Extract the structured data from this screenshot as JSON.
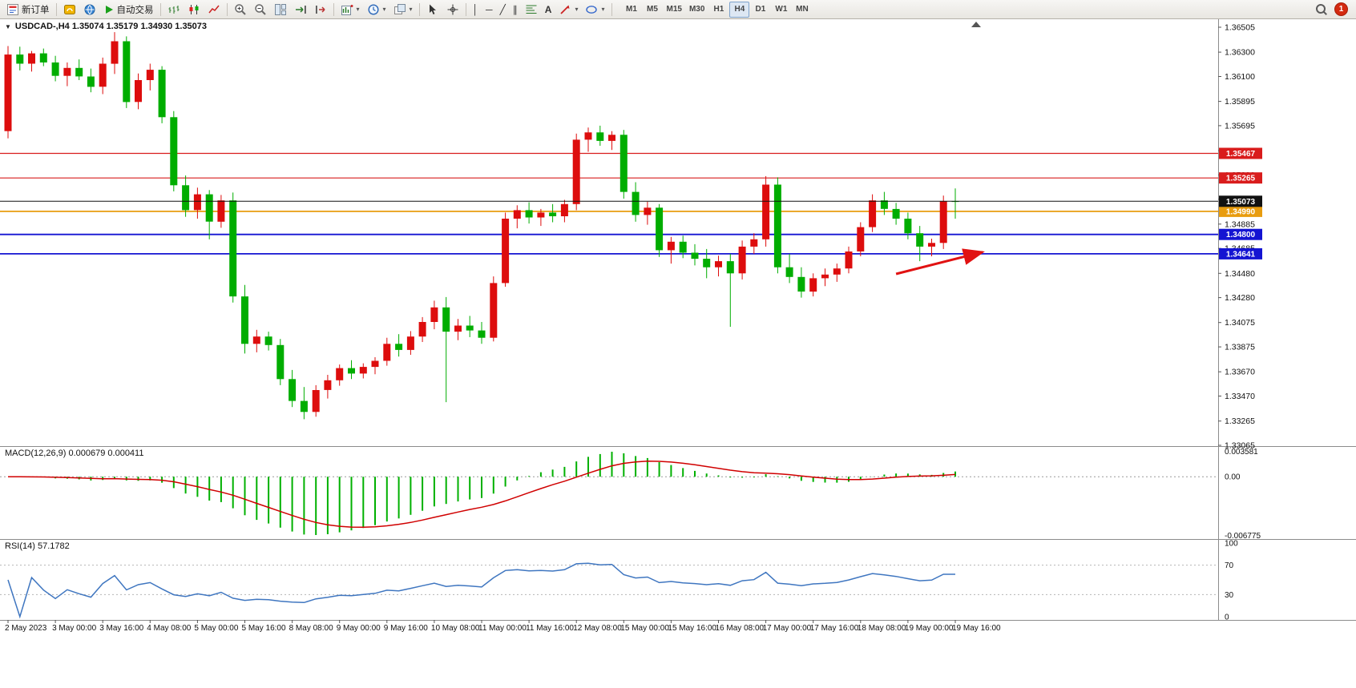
{
  "toolbar": {
    "new_order": "新订单",
    "auto_trading": "自动交易",
    "text_tool": "A",
    "timeframes": [
      "M1",
      "M5",
      "M15",
      "M30",
      "H1",
      "H4",
      "D1",
      "W1",
      "MN"
    ],
    "active_timeframe": "H4",
    "notification_count": "1"
  },
  "icons": {
    "collapse": "▼",
    "dropdown": "▾",
    "vertical_line": "│",
    "horizontal_line": "─",
    "trendline": "╱",
    "channel": "∥"
  },
  "main_chart": {
    "title_text": "USDCAD-,H4  1.35074 1.35179 1.34930 1.35073"
  },
  "macd_panel": {
    "label": "MACD(12,26,9) 0.000679 0.000411"
  },
  "rsi_panel": {
    "label": "RSI(14) 57.1782"
  },
  "chart_data": [
    {
      "type": "candlestick",
      "symbol": "USDCAD",
      "timeframe": "H4",
      "current_bar": {
        "open": 1.35074,
        "high": 1.35179,
        "low": 1.3493,
        "close": 1.35073
      },
      "up_color": "#dd0d0d",
      "down_color": "#00ad00",
      "y_axis": {
        "min": 1.33065,
        "max": 1.36505,
        "ticks": [
          1.36505,
          1.363,
          1.361,
          1.35895,
          1.35695,
          1.3549,
          1.3529,
          1.3509,
          1.34885,
          1.34685,
          1.3448,
          1.3428,
          1.34075,
          1.33875,
          1.3367,
          1.3347,
          1.33265,
          1.33065
        ]
      },
      "x_ticks": [
        {
          "i": 0,
          "label": "2 May 2023"
        },
        {
          "i": 4,
          "label": "3 May 00:00"
        },
        {
          "i": 8,
          "label": "3 May 16:00"
        },
        {
          "i": 12,
          "label": "4 May 08:00"
        },
        {
          "i": 16,
          "label": "5 May 00:00"
        },
        {
          "i": 20,
          "label": "5 May 16:00"
        },
        {
          "i": 24,
          "label": "8 May 08:00"
        },
        {
          "i": 28,
          "label": "9 May 00:00"
        },
        {
          "i": 32,
          "label": "9 May 16:00"
        },
        {
          "i": 36,
          "label": "10 May 08:00"
        },
        {
          "i": 40,
          "label": "11 May 00:00"
        },
        {
          "i": 44,
          "label": "11 May 16:00"
        },
        {
          "i": 48,
          "label": "12 May 08:00"
        },
        {
          "i": 52,
          "label": "15 May 00:00"
        },
        {
          "i": 56,
          "label": "15 May 16:00"
        },
        {
          "i": 60,
          "label": "16 May 08:00"
        },
        {
          "i": 64,
          "label": "17 May 00:00"
        },
        {
          "i": 68,
          "label": "17 May 16:00"
        },
        {
          "i": 72,
          "label": "18 May 08:00"
        },
        {
          "i": 76,
          "label": "19 May 00:00"
        },
        {
          "i": 80,
          "label": "19 May 16:00"
        }
      ],
      "h_lines": [
        {
          "price": 1.35467,
          "color": "#d91c1c",
          "width": 1.2,
          "role": "resistance"
        },
        {
          "price": 1.35265,
          "color": "#d91c1c",
          "width": 1.2,
          "role": "resistance"
        },
        {
          "price": 1.3499,
          "color": "#e89c0e",
          "width": 1.8,
          "role": "pivot"
        },
        {
          "price": 1.348,
          "color": "#1414d2",
          "width": 1.8,
          "role": "support"
        },
        {
          "price": 1.34641,
          "color": "#1414d2",
          "width": 1.8,
          "role": "support"
        }
      ],
      "bid_line": {
        "price": 1.35073,
        "color": "#111111"
      },
      "annotation_arrow": {
        "from_i": 75,
        "from_price": 1.34475,
        "to_i": 82.3,
        "to_price": 1.34655,
        "color": "#e11212"
      },
      "candles": [
        [
          1.3565,
          1.3635,
          1.3559,
          1.3628
        ],
        [
          1.3628,
          1.36345,
          1.3615,
          1.36205
        ],
        [
          1.36205,
          1.3631,
          1.3614,
          1.3629
        ],
        [
          1.3629,
          1.3633,
          1.36185,
          1.36215
        ],
        [
          1.36215,
          1.3627,
          1.3606,
          1.36105
        ],
        [
          1.36105,
          1.36215,
          1.3602,
          1.3617
        ],
        [
          1.3617,
          1.3624,
          1.3607,
          1.361
        ],
        [
          1.361,
          1.36165,
          1.3597,
          1.36015
        ],
        [
          1.36015,
          1.36255,
          1.35955,
          1.36205
        ],
        [
          1.36205,
          1.36465,
          1.3612,
          1.3639
        ],
        [
          1.3639,
          1.3643,
          1.3584,
          1.3589
        ],
        [
          1.3589,
          1.36125,
          1.3583,
          1.3607
        ],
        [
          1.3607,
          1.36205,
          1.35985,
          1.36155
        ],
        [
          1.36155,
          1.36185,
          1.35715,
          1.35765
        ],
        [
          1.35765,
          1.35815,
          1.35155,
          1.35205
        ],
        [
          1.35205,
          1.35285,
          1.34945,
          1.35
        ],
        [
          1.35,
          1.35185,
          1.3493,
          1.3513
        ],
        [
          1.3513,
          1.35165,
          1.3476,
          1.34905
        ],
        [
          1.34905,
          1.35125,
          1.34855,
          1.3508
        ],
        [
          1.3508,
          1.35145,
          1.3424,
          1.3429
        ],
        [
          1.3429,
          1.34385,
          1.3382,
          1.339
        ],
        [
          1.339,
          1.34015,
          1.3383,
          1.3396
        ],
        [
          1.3396,
          1.34,
          1.33845,
          1.3389
        ],
        [
          1.3389,
          1.3394,
          1.3356,
          1.3361
        ],
        [
          1.3361,
          1.33685,
          1.3338,
          1.3343
        ],
        [
          1.3343,
          1.33545,
          1.3328,
          1.3334
        ],
        [
          1.3334,
          1.3356,
          1.333,
          1.3352
        ],
        [
          1.3352,
          1.33645,
          1.3345,
          1.336
        ],
        [
          1.336,
          1.3373,
          1.33555,
          1.337
        ],
        [
          1.337,
          1.33765,
          1.3361,
          1.33655
        ],
        [
          1.33655,
          1.3374,
          1.33615,
          1.3371
        ],
        [
          1.3371,
          1.3379,
          1.3365,
          1.3376
        ],
        [
          1.3376,
          1.3395,
          1.3372,
          1.339
        ],
        [
          1.339,
          1.3398,
          1.33795,
          1.3385
        ],
        [
          1.3385,
          1.34005,
          1.3381,
          1.3396
        ],
        [
          1.3396,
          1.3412,
          1.33915,
          1.3408
        ],
        [
          1.3408,
          1.34255,
          1.3402,
          1.342
        ],
        [
          1.342,
          1.34285,
          1.3342,
          1.34
        ],
        [
          1.34,
          1.34105,
          1.3393,
          1.3405
        ],
        [
          1.3405,
          1.3413,
          1.33955,
          1.3401
        ],
        [
          1.3401,
          1.3408,
          1.339,
          1.3395
        ],
        [
          1.3395,
          1.34455,
          1.3392,
          1.344
        ],
        [
          1.344,
          1.3498,
          1.3437,
          1.3493
        ],
        [
          1.3493,
          1.3504,
          1.3485,
          1.35
        ],
        [
          1.35,
          1.35065,
          1.3489,
          1.3494
        ],
        [
          1.3494,
          1.3501,
          1.3487,
          1.3498
        ],
        [
          1.3498,
          1.3505,
          1.349,
          1.3495
        ],
        [
          1.3495,
          1.35085,
          1.349,
          1.3505
        ],
        [
          1.3505,
          1.3563,
          1.35,
          1.3558
        ],
        [
          1.3558,
          1.3568,
          1.3548,
          1.3564
        ],
        [
          1.3564,
          1.35695,
          1.3553,
          1.3557
        ],
        [
          1.3557,
          1.3565,
          1.35495,
          1.3562
        ],
        [
          1.3562,
          1.3566,
          1.35095,
          1.3515
        ],
        [
          1.3515,
          1.3523,
          1.34905,
          1.3496
        ],
        [
          1.3496,
          1.3507,
          1.3488,
          1.3502
        ],
        [
          1.3502,
          1.3505,
          1.34615,
          1.3467
        ],
        [
          1.3467,
          1.3478,
          1.3456,
          1.3474
        ],
        [
          1.3474,
          1.3479,
          1.34605,
          1.3465
        ],
        [
          1.3465,
          1.3472,
          1.34545,
          1.346
        ],
        [
          1.346,
          1.3468,
          1.3444,
          1.3453
        ],
        [
          1.3453,
          1.34625,
          1.34455,
          1.3458
        ],
        [
          1.3458,
          1.3464,
          1.3404,
          1.3448
        ],
        [
          1.3448,
          1.3475,
          1.3443,
          1.347
        ],
        [
          1.347,
          1.3481,
          1.3464,
          1.3476
        ],
        [
          1.3476,
          1.3528,
          1.347,
          1.3521
        ],
        [
          1.3521,
          1.3527,
          1.3448,
          1.3453
        ],
        [
          1.3453,
          1.3464,
          1.344,
          1.3445
        ],
        [
          1.3445,
          1.3453,
          1.3428,
          1.3433
        ],
        [
          1.3433,
          1.3448,
          1.3429,
          1.3444
        ],
        [
          1.3444,
          1.3452,
          1.34375,
          1.3447
        ],
        [
          1.3447,
          1.3456,
          1.3441,
          1.3452
        ],
        [
          1.3452,
          1.347,
          1.3448,
          1.3466
        ],
        [
          1.3466,
          1.349,
          1.3462,
          1.3486
        ],
        [
          1.3486,
          1.3513,
          1.3482,
          1.3508
        ],
        [
          1.3508,
          1.3515,
          1.3496,
          1.3501
        ],
        [
          1.3501,
          1.3506,
          1.3488,
          1.3493
        ],
        [
          1.3493,
          1.3498,
          1.3476,
          1.3481
        ],
        [
          1.3481,
          1.3487,
          1.3458,
          1.347
        ],
        [
          1.347,
          1.34765,
          1.3462,
          1.3473
        ],
        [
          1.3473,
          1.3512,
          1.3468,
          1.35074
        ],
        [
          1.35074,
          1.35179,
          1.3493,
          1.35073
        ]
      ]
    },
    {
      "type": "bar",
      "name": "MACD",
      "params": [
        12,
        26,
        9
      ],
      "current": {
        "macd": 0.000679,
        "signal": 0.000411
      },
      "y_tick_labels": [
        "0.003581",
        "0.00",
        "-0.006775"
      ],
      "histogram_color": "#00b000",
      "signal_color": "#d00000"
    },
    {
      "type": "line",
      "name": "RSI",
      "params": [
        14
      ],
      "current": 57.1782,
      "scale": {
        "min": 0,
        "max": 100
      },
      "levels": [
        70,
        30
      ],
      "y_ticks": [
        100,
        70,
        30,
        0
      ],
      "line_color": "#3f76c0"
    }
  ]
}
